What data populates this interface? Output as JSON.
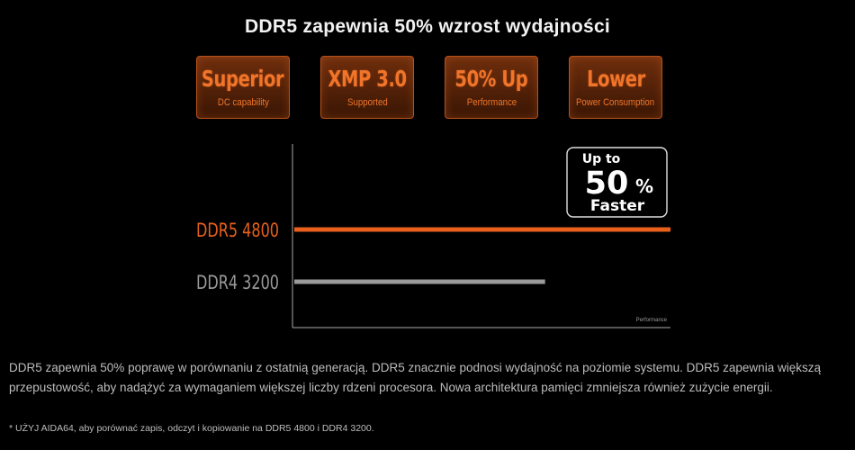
{
  "title": "DDR5 zapewnia 50% wzrost wydajności",
  "badges": [
    {
      "main": "Superior",
      "sub": "DC capability"
    },
    {
      "main": "XMP 3.0",
      "sub": "Supported"
    },
    {
      "main": "50% Up",
      "sub": "Performance"
    },
    {
      "main": "Lower",
      "sub": "Power Consumption"
    }
  ],
  "chart_data": {
    "type": "bar",
    "orientation": "horizontal",
    "categories": [
      "DDR5 4800",
      "DDR4 3200"
    ],
    "values": [
      150,
      100
    ],
    "xlabel": "Performance",
    "xlim": [
      0,
      150
    ],
    "grid": false,
    "colors": [
      "#e8601c",
      "#9a9a9a"
    ],
    "annotation": {
      "line1": "Up to",
      "line2": "50",
      "line3": "%",
      "line4": "Faster"
    }
  },
  "description": "DDR5 zapewnia 50% poprawę w porównaniu z ostatnią generacją. DDR5 znacznie podnosi wydajność na poziomie systemu. DDR5 zapewnia większą przepustowość, aby nadążyć za wymaganiem większej liczby rdzeni procesora. Nowa architektura pamięci zmniejsza również zużycie energii.",
  "footnote": "* UŻYJ AIDA64, aby porównać zapis, odczyt i kopiowanie na DDR5 4800 i DDR4 3200."
}
